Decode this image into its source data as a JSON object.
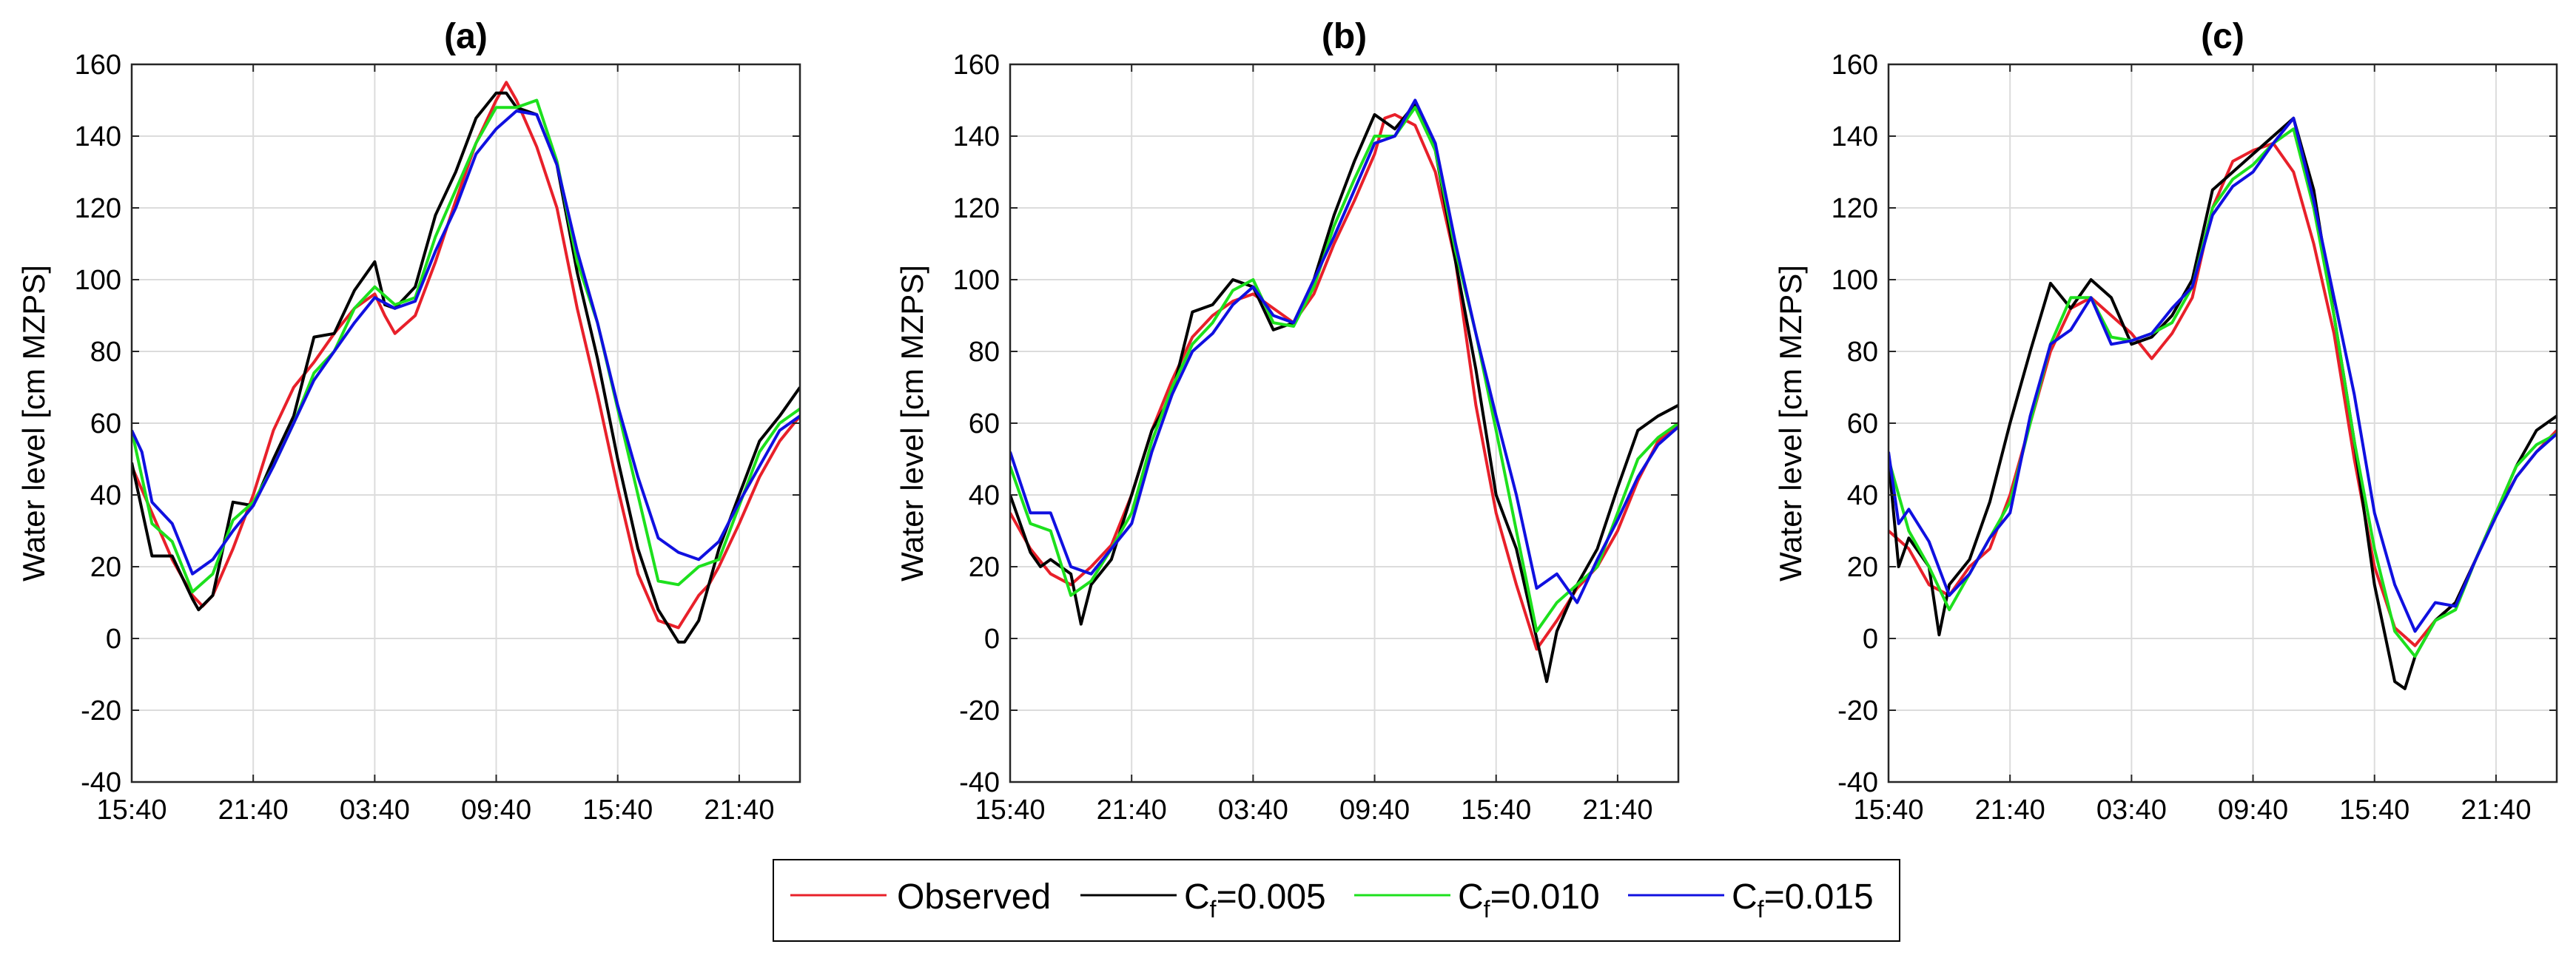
{
  "legend": {
    "observed": "Observed",
    "cf_prefix": "C",
    "cf_sub": "f",
    "cf1": "=0.005",
    "cf2": "=0.010",
    "cf3": "=0.015"
  },
  "colors": {
    "observed": "#e8202a",
    "cf_0005": "#000000",
    "cf_0010": "#1de01d",
    "cf_0015": "#1010e0",
    "grid": "#dcdcdc"
  },
  "chart_data": [
    {
      "type": "line",
      "title": "(a)",
      "ylabel": "Water level [cm MZPS]",
      "xlabel": "",
      "x_tick_labels": [
        "15:40",
        "21:40",
        "03:40",
        "09:40",
        "15:40",
        "21:40"
      ],
      "x_tick_hours": [
        0,
        6,
        12,
        18,
        24,
        30
      ],
      "xlim_hours": [
        0,
        33
      ],
      "ylim": [
        -40,
        160
      ],
      "y_ticks": [
        -40,
        -20,
        0,
        20,
        40,
        60,
        80,
        100,
        120,
        140,
        160
      ],
      "grid": true,
      "series": [
        {
          "name": "Observed",
          "color_key": "observed",
          "x": [
            0,
            1,
            2,
            3,
            3.5,
            4,
            5,
            6,
            7,
            8,
            9,
            10,
            11,
            12,
            12.5,
            13,
            14,
            15,
            16,
            17,
            18,
            18.5,
            19,
            20,
            21,
            22,
            23,
            24,
            25,
            26,
            27,
            28,
            28.5,
            29,
            30,
            31,
            32,
            33
          ],
          "y": [
            48,
            35,
            22,
            12,
            9,
            12,
            25,
            40,
            58,
            70,
            77,
            85,
            92,
            96,
            90,
            85,
            90,
            105,
            122,
            138,
            150,
            155,
            150,
            137,
            120,
            92,
            68,
            42,
            18,
            5,
            3,
            12,
            15,
            20,
            32,
            45,
            55,
            62
          ]
        },
        {
          "name": "C=0.005",
          "color_key": "cf_0005",
          "x": [
            0,
            1,
            2,
            3,
            3.3,
            4,
            5,
            6,
            7,
            8,
            9,
            10,
            11,
            12,
            12.5,
            13,
            14,
            15,
            16,
            17,
            18,
            18.5,
            19,
            20,
            21,
            22,
            23,
            24,
            25,
            26,
            27,
            27.3,
            28,
            29,
            30,
            31,
            32,
            33
          ],
          "y": [
            49,
            23,
            23,
            11,
            8,
            12,
            38,
            37,
            50,
            62,
            84,
            85,
            97,
            105,
            93,
            92,
            98,
            118,
            130,
            145,
            152,
            152,
            148,
            146,
            132,
            102,
            78,
            50,
            25,
            8,
            -1,
            -1,
            5,
            25,
            40,
            55,
            62,
            70
          ]
        },
        {
          "name": "C=0.010",
          "color_key": "cf_0010",
          "x": [
            0,
            1,
            2,
            3,
            4,
            5,
            6,
            7,
            8,
            9,
            10,
            11,
            12,
            13,
            14,
            15,
            16,
            17,
            18,
            19,
            20,
            21,
            22,
            23,
            24,
            25,
            26,
            27,
            28,
            29,
            30,
            31,
            32,
            33
          ],
          "y": [
            58,
            32,
            27,
            13,
            18,
            33,
            38,
            48,
            60,
            74,
            80,
            92,
            98,
            93,
            95,
            112,
            125,
            138,
            148,
            148,
            150,
            133,
            105,
            88,
            64,
            40,
            16,
            15,
            20,
            22,
            37,
            52,
            60,
            64
          ]
        },
        {
          "name": "C=0.015",
          "color_key": "cf_0015",
          "x": [
            0,
            0.5,
            1,
            2,
            3,
            4,
            5,
            6,
            7,
            8,
            9,
            10,
            11,
            12,
            13,
            14,
            15,
            16,
            17,
            18,
            19,
            20,
            21,
            22,
            23,
            24,
            25,
            26,
            27,
            28,
            29,
            30,
            31,
            32,
            33
          ],
          "y": [
            58,
            52,
            38,
            32,
            18,
            22,
            30,
            37,
            48,
            60,
            72,
            80,
            88,
            95,
            92,
            94,
            108,
            120,
            135,
            142,
            147,
            146,
            132,
            108,
            88,
            65,
            45,
            28,
            24,
            22,
            27,
            38,
            48,
            58,
            62
          ]
        }
      ]
    },
    {
      "type": "line",
      "title": "(b)",
      "ylabel": "Water level [cm MZPS]",
      "xlabel": "",
      "x_tick_labels": [
        "15:40",
        "21:40",
        "03:40",
        "09:40",
        "15:40",
        "21:40"
      ],
      "x_tick_hours": [
        0,
        6,
        12,
        18,
        24,
        30
      ],
      "xlim_hours": [
        0,
        33
      ],
      "ylim": [
        -40,
        160
      ],
      "y_ticks": [
        -40,
        -20,
        0,
        20,
        40,
        60,
        80,
        100,
        120,
        140,
        160
      ],
      "grid": true,
      "series": [
        {
          "name": "Observed",
          "color_key": "observed",
          "x": [
            0,
            1,
            2,
            3,
            4,
            5,
            6,
            7,
            8,
            9,
            10,
            11,
            12,
            13,
            14,
            15,
            16,
            17,
            18,
            18.5,
            19,
            20,
            21,
            22,
            23,
            24,
            25,
            26,
            27,
            28,
            29,
            30,
            31,
            32,
            33
          ],
          "y": [
            35,
            25,
            18,
            15,
            20,
            26,
            40,
            58,
            72,
            84,
            90,
            94,
            96,
            92,
            88,
            96,
            110,
            122,
            135,
            145,
            146,
            143,
            130,
            105,
            65,
            35,
            15,
            -3,
            5,
            14,
            20,
            30,
            44,
            55,
            60
          ]
        },
        {
          "name": "C=0.005",
          "color_key": "cf_0005",
          "x": [
            0,
            1,
            1.5,
            2,
            3,
            3.5,
            4,
            5,
            6,
            7,
            8,
            9,
            10,
            11,
            12,
            13,
            14,
            15,
            16,
            17,
            18,
            19,
            20,
            21,
            22,
            23,
            24,
            25,
            26,
            26.5,
            27,
            28,
            29,
            30,
            31,
            32,
            33
          ],
          "y": [
            40,
            24,
            20,
            22,
            18,
            4,
            15,
            22,
            40,
            58,
            68,
            91,
            93,
            100,
            98,
            86,
            88,
            100,
            118,
            133,
            146,
            142,
            149,
            136,
            105,
            75,
            40,
            25,
            0,
            -12,
            2,
            15,
            25,
            42,
            58,
            62,
            65
          ]
        },
        {
          "name": "C=0.010",
          "color_key": "cf_0010",
          "x": [
            0,
            1,
            2,
            3,
            4,
            5,
            6,
            7,
            8,
            9,
            10,
            11,
            12,
            13,
            14,
            15,
            16,
            17,
            18,
            19,
            20,
            21,
            22,
            23,
            24,
            25,
            26,
            27,
            28,
            29,
            30,
            31,
            32,
            33
          ],
          "y": [
            48,
            32,
            30,
            12,
            16,
            25,
            35,
            55,
            70,
            82,
            88,
            97,
            100,
            88,
            87,
            98,
            115,
            128,
            140,
            140,
            148,
            136,
            108,
            85,
            58,
            30,
            2,
            10,
            15,
            20,
            35,
            50,
            56,
            60
          ]
        },
        {
          "name": "C=0.015",
          "color_key": "cf_0015",
          "x": [
            0,
            1,
            2,
            3,
            4,
            5,
            6,
            7,
            8,
            9,
            10,
            11,
            12,
            13,
            14,
            15,
            16,
            17,
            18,
            19,
            20,
            21,
            22,
            23,
            24,
            25,
            26,
            27,
            28,
            29,
            30,
            31,
            32,
            33
          ],
          "y": [
            52,
            35,
            35,
            20,
            18,
            25,
            32,
            52,
            68,
            80,
            85,
            93,
            98,
            90,
            88,
            100,
            112,
            125,
            138,
            140,
            150,
            138,
            110,
            85,
            62,
            40,
            14,
            18,
            10,
            22,
            33,
            45,
            54,
            59
          ]
        }
      ]
    },
    {
      "type": "line",
      "title": "(c)",
      "ylabel": "Water level [cm MZPS]",
      "xlabel": "",
      "x_tick_labels": [
        "15:40",
        "21:40",
        "03:40",
        "09:40",
        "15:40",
        "21:40"
      ],
      "x_tick_hours": [
        0,
        6,
        12,
        18,
        24,
        30
      ],
      "xlim_hours": [
        0,
        33
      ],
      "ylim": [
        -40,
        160
      ],
      "y_ticks": [
        -40,
        -20,
        0,
        20,
        40,
        60,
        80,
        100,
        120,
        140,
        160
      ],
      "grid": true,
      "series": [
        {
          "name": "Observed",
          "color_key": "observed",
          "x": [
            0,
            1,
            2,
            3,
            4,
            5,
            6,
            7,
            8,
            9,
            10,
            11,
            12,
            13,
            14,
            15,
            16,
            17,
            18,
            19,
            20,
            21,
            22,
            23,
            24,
            25,
            26,
            27,
            28,
            29,
            30,
            31,
            32,
            33
          ],
          "y": [
            30,
            25,
            15,
            12,
            20,
            25,
            40,
            60,
            80,
            92,
            95,
            90,
            85,
            78,
            85,
            95,
            120,
            133,
            136,
            138,
            130,
            110,
            85,
            50,
            20,
            3,
            -2,
            5,
            10,
            22,
            35,
            45,
            52,
            58
          ]
        },
        {
          "name": "C=0.005",
          "color_key": "cf_0005",
          "x": [
            0,
            0.5,
            1,
            2,
            2.5,
            3,
            4,
            5,
            6,
            7,
            8,
            9,
            10,
            11,
            12,
            13,
            14,
            15,
            16,
            17,
            18,
            19,
            20,
            21,
            22,
            23,
            24,
            25,
            25.5,
            26,
            27,
            28,
            29,
            30,
            31,
            32,
            33
          ],
          "y": [
            50,
            20,
            28,
            20,
            1,
            15,
            22,
            38,
            60,
            80,
            99,
            92,
            100,
            95,
            82,
            84,
            90,
            100,
            125,
            130,
            135,
            140,
            145,
            125,
            90,
            55,
            15,
            -12,
            -14,
            -5,
            5,
            10,
            22,
            35,
            48,
            58,
            62
          ]
        },
        {
          "name": "C=0.010",
          "color_key": "cf_0010",
          "x": [
            0,
            1,
            2,
            3,
            4,
            5,
            6,
            7,
            8,
            9,
            10,
            11,
            12,
            13,
            14,
            15,
            16,
            17,
            18,
            19,
            20,
            21,
            22,
            23,
            24,
            25,
            26,
            27,
            28,
            29,
            30,
            31,
            32,
            33
          ],
          "y": [
            50,
            30,
            20,
            8,
            18,
            28,
            38,
            60,
            82,
            95,
            95,
            84,
            83,
            85,
            88,
            98,
            120,
            128,
            132,
            138,
            142,
            120,
            90,
            55,
            25,
            2,
            -5,
            5,
            8,
            22,
            35,
            48,
            54,
            57
          ]
        },
        {
          "name": "C=0.015",
          "color_key": "cf_0015",
          "x": [
            0,
            0.5,
            1,
            2,
            3,
            4,
            5,
            6,
            7,
            8,
            9,
            10,
            11,
            12,
            13,
            14,
            15,
            16,
            17,
            18,
            19,
            20,
            21,
            22,
            23,
            24,
            25,
            26,
            27,
            28,
            29,
            30,
            31,
            32,
            33
          ],
          "y": [
            52,
            32,
            36,
            27,
            12,
            18,
            28,
            35,
            62,
            82,
            86,
            95,
            82,
            83,
            85,
            92,
            98,
            118,
            126,
            130,
            138,
            145,
            122,
            95,
            68,
            35,
            15,
            2,
            10,
            9,
            22,
            34,
            45,
            52,
            57
          ]
        }
      ]
    }
  ]
}
